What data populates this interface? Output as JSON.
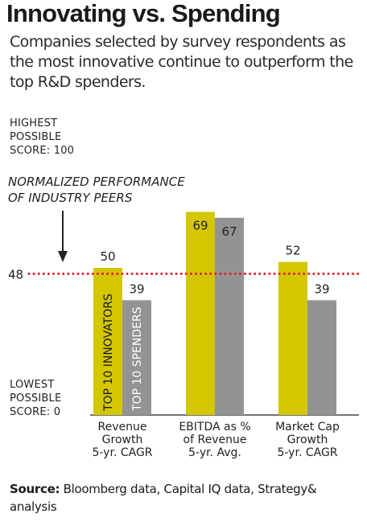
{
  "header": {
    "title": "Innovating vs. Spending",
    "subtitle": "Companies selected by survey respondents as the most innovative continue to outperform the top R&D spenders."
  },
  "source": {
    "label": "Source:",
    "text": "Bloomberg data, Capital IQ data, Strategy& analysis"
  },
  "chart_data": {
    "type": "bar",
    "ylim": [
      0,
      100
    ],
    "y_top_label": [
      "HIGHEST",
      "POSSIBLE",
      "SCORE: 100"
    ],
    "y_bottom_label": [
      "LOWEST",
      "POSSIBLE",
      "SCORE: 0"
    ],
    "reference_line": {
      "value": 48,
      "label": "48",
      "annotation": [
        "NORMALIZED PERFORMANCE",
        "OF INDUSTRY PEERS"
      ],
      "color": "#e0212e"
    },
    "categories": [
      [
        "Revenue",
        "Growth",
        "5-yr. CAGR"
      ],
      [
        "EBITDA as %",
        "of Revenue",
        "5-yr. Avg."
      ],
      [
        "Market Cap",
        "Growth",
        "5-yr. CAGR"
      ]
    ],
    "series": [
      {
        "name": "TOP 10 INNOVATORS",
        "color": "#d4c600",
        "values": [
          50,
          69,
          52
        ]
      },
      {
        "name": "TOP 10 SPENDERS",
        "color": "#939393",
        "values": [
          39,
          67,
          39
        ]
      }
    ],
    "grid": false,
    "legend": "inside-first-bars"
  }
}
